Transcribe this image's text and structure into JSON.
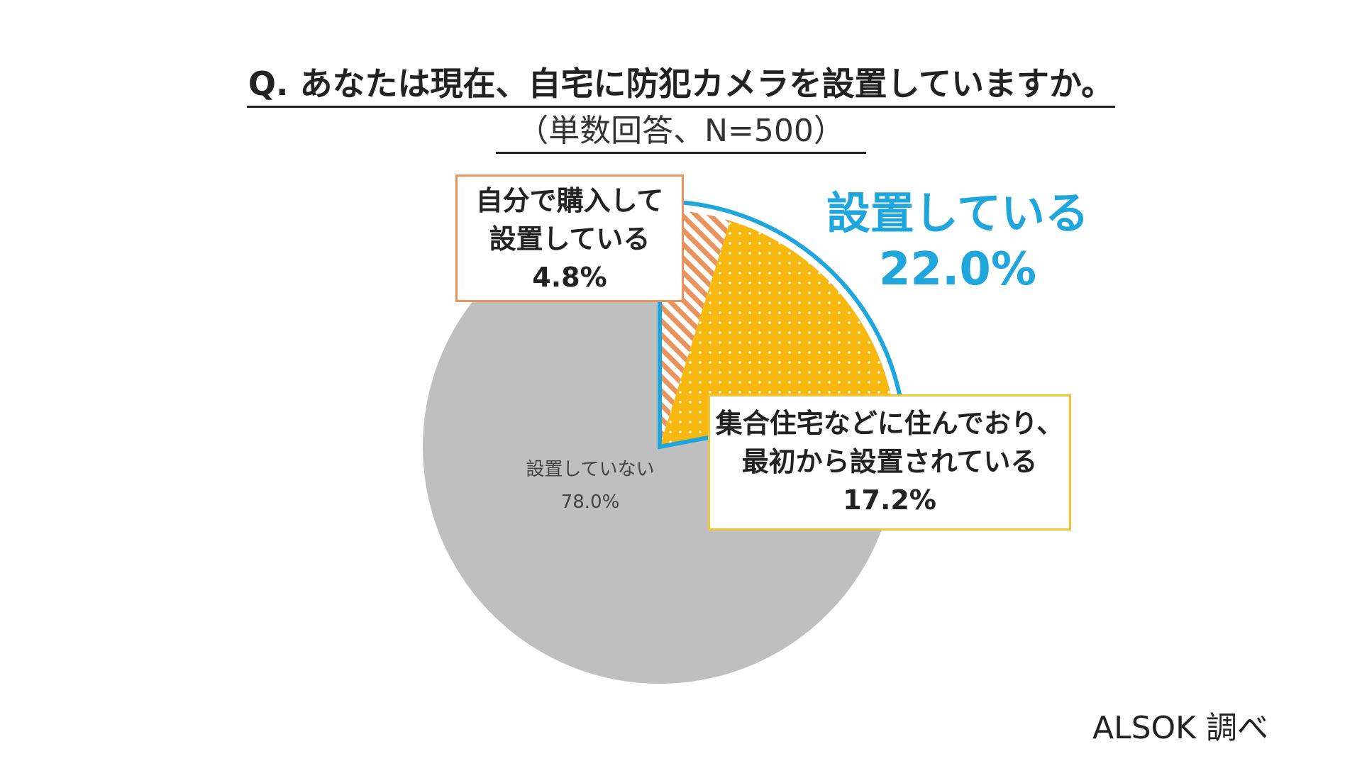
{
  "title": "Q. あなたは現在、自宅に防犯カメラを設置していますか。",
  "subtitle": "（単数回答、N=500）",
  "source": "ALSOK 調べ",
  "colors": {
    "not_installed": "#bfbfbf",
    "self_installed": "#e8945c",
    "pre_installed": "#f7b80f",
    "installed_group": "#1fa6dc"
  },
  "chart_data": {
    "type": "pie",
    "start_angle_deg": 0,
    "direction": "clockwise",
    "slices": [
      {
        "label": "自分で購入して設置している",
        "value": 4.8,
        "display": "4.8%",
        "pattern": "diagonal-stripes"
      },
      {
        "label": "集合住宅などに住んでおり、最初から設置されている",
        "value": 17.2,
        "display": "17.2%",
        "pattern": "dots"
      },
      {
        "label": "設置していない",
        "value": 78.0,
        "display": "78.0%",
        "pattern": "solid"
      }
    ],
    "group": {
      "label": "設置している",
      "value": 22.0,
      "display": "22.0%"
    }
  },
  "callouts": {
    "self": {
      "line1": "自分で購入して",
      "line2": "設置している",
      "value": "4.8%"
    },
    "apt": {
      "line1": "集合住宅などに住んでおり、",
      "line2": "最初から設置されている",
      "value": "17.2%"
    },
    "not": {
      "line1": "設置していない",
      "value": "78.0%"
    }
  }
}
